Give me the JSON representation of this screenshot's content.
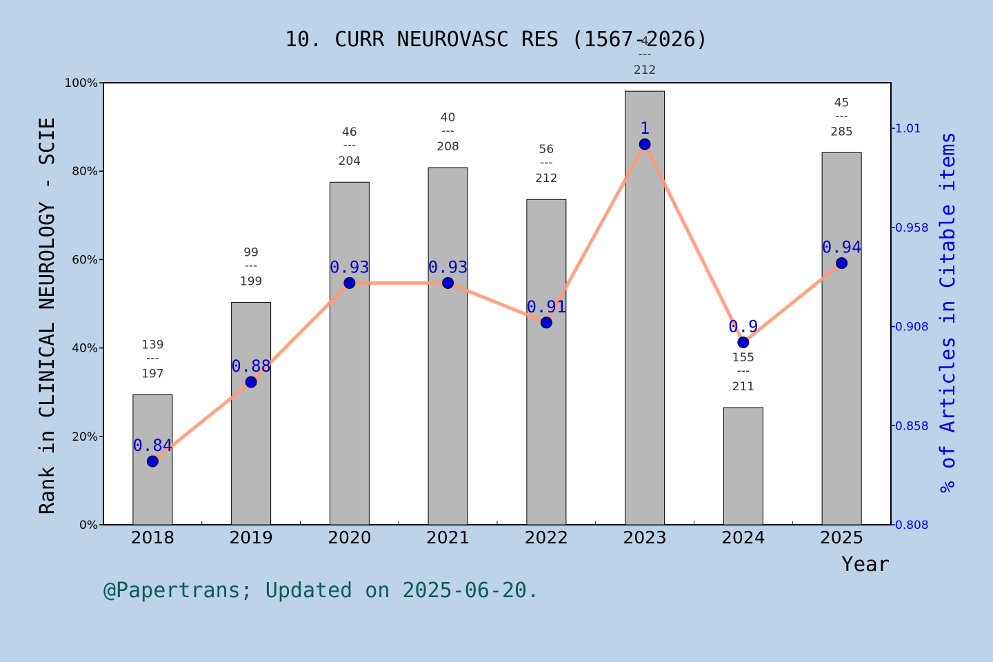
{
  "chart_data": {
    "type": "bar",
    "title": "10. CURR NEUROVASC RES (1567-2026)",
    "ylabel": "Rank in CLINICAL NEUROLOGY - SCIE",
    "y2label": "% of Articles in Citable items",
    "xlabel": "Year",
    "ylim": [
      0,
      100
    ],
    "y_ticks": [
      "0%",
      "20%",
      "40%",
      "60%",
      "80%",
      "100%"
    ],
    "y2lim": [
      0.808,
      1.031
    ],
    "y2_ticks": [
      {
        "value": 0.808,
        "label": "0.808"
      },
      {
        "value": 0.858,
        "label": "0.858"
      },
      {
        "value": 0.908,
        "label": "0.908"
      },
      {
        "value": 0.958,
        "label": "0.958"
      },
      {
        "value": 1.008,
        "label": "1.01"
      }
    ],
    "categories": [
      "2018",
      "2019",
      "2020",
      "2021",
      "2022",
      "2023",
      "2024",
      "2025"
    ],
    "series": [
      {
        "kind": "bar",
        "color": "#b8b8b8",
        "values": [
          29.4,
          50.3,
          77.5,
          80.8,
          73.6,
          98.1,
          26.5,
          84.2
        ],
        "labels": [
          {
            "num": "139",
            "sep": "---",
            "den": "197"
          },
          {
            "num": "99",
            "sep": "---",
            "den": "199"
          },
          {
            "num": "46",
            "sep": "---",
            "den": "204"
          },
          {
            "num": "40",
            "sep": "---",
            "den": "208"
          },
          {
            "num": "56",
            "sep": "---",
            "den": "212"
          },
          {
            "num": "4",
            "sep": "---",
            "den": "212"
          },
          {
            "num": "155",
            "sep": "---",
            "den": "211"
          },
          {
            "num": "45",
            "sep": "---",
            "den": "285"
          }
        ]
      },
      {
        "kind": "line",
        "color": "#ff9977",
        "marker_color": "#0000cc",
        "values": [
          0.84,
          0.88,
          0.93,
          0.93,
          0.91,
          1.0,
          0.9,
          0.94
        ],
        "labels": [
          "0.84",
          "0.88",
          "0.93",
          "0.93",
          "0.91",
          "1",
          "0.9",
          "0.94"
        ]
      }
    ],
    "grid": false
  },
  "footer": "@Papertrans; Updated on 2025-06-20."
}
